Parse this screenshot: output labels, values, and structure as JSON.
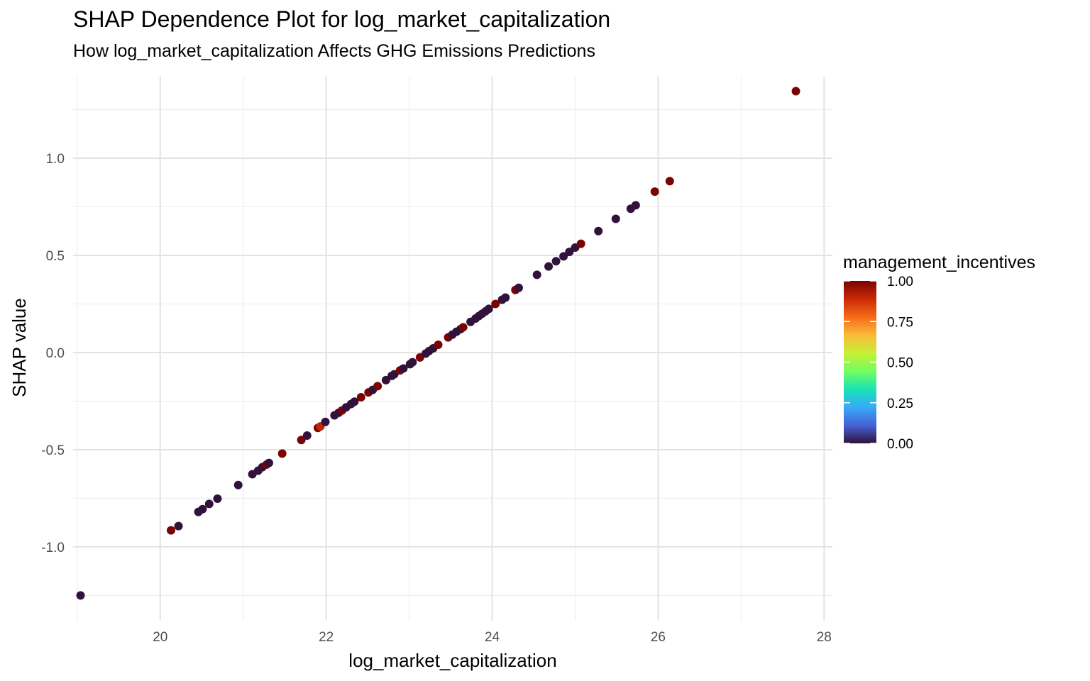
{
  "chart_data": {
    "type": "scatter",
    "title": "SHAP Dependence Plot for log_market_capitalization",
    "subtitle": "How log_market_capitalization Affects GHG Emissions Predictions",
    "xlabel": "log_market_capitalization",
    "ylabel": "SHAP value",
    "xlim": [
      18.95,
      28.1
    ],
    "ylim": [
      -1.38,
      1.42
    ],
    "x_ticks": [
      20,
      22,
      24,
      26,
      28
    ],
    "y_ticks": [
      -1.0,
      -0.5,
      0.0,
      0.5,
      1.0
    ],
    "x_tick_labels": [
      "20",
      "22",
      "24",
      "26",
      "28"
    ],
    "y_tick_labels": [
      "-1.0",
      "-0.5",
      "0.0",
      "0.5",
      "1.0"
    ],
    "grid": true,
    "color_legend": {
      "title": "management_incentives",
      "placement": "right",
      "range": [
        0,
        1
      ],
      "ticks": [
        0.0,
        0.25,
        0.5,
        0.75,
        1.0
      ],
      "tick_labels": [
        "0.00",
        "0.25",
        "0.50",
        "0.75",
        "1.00"
      ],
      "palette": [
        "#30123b",
        "#4662d7",
        "#36aaf9",
        "#1ae4b6",
        "#72fe5e",
        "#c7ef34",
        "#fabb3a",
        "#f66b19",
        "#ca2a04",
        "#7a0403"
      ]
    },
    "points": [
      {
        "x": 19.04,
        "y": -1.25,
        "c": 0
      },
      {
        "x": 20.13,
        "y": -0.915,
        "c": 1
      },
      {
        "x": 20.22,
        "y": -0.893,
        "c": 0
      },
      {
        "x": 20.46,
        "y": -0.82,
        "c": 0
      },
      {
        "x": 20.51,
        "y": -0.806,
        "c": 0
      },
      {
        "x": 20.59,
        "y": -0.779,
        "c": 0
      },
      {
        "x": 20.69,
        "y": -0.752,
        "c": 0
      },
      {
        "x": 20.94,
        "y": -0.682,
        "c": 0
      },
      {
        "x": 21.11,
        "y": -0.626,
        "c": 0
      },
      {
        "x": 21.18,
        "y": -0.608,
        "c": 0
      },
      {
        "x": 21.23,
        "y": -0.59,
        "c": 0
      },
      {
        "x": 21.28,
        "y": -0.577,
        "c": 1
      },
      {
        "x": 21.31,
        "y": -0.568,
        "c": 0
      },
      {
        "x": 21.47,
        "y": -0.52,
        "c": 1
      },
      {
        "x": 21.7,
        "y": -0.45,
        "c": 1
      },
      {
        "x": 21.77,
        "y": -0.427,
        "c": 0
      },
      {
        "x": 21.9,
        "y": -0.388,
        "c": 1
      },
      {
        "x": 21.93,
        "y": -0.38,
        "c": 0.9
      },
      {
        "x": 21.99,
        "y": -0.357,
        "c": 0
      },
      {
        "x": 22.1,
        "y": -0.323,
        "c": 0
      },
      {
        "x": 22.15,
        "y": -0.31,
        "c": 0
      },
      {
        "x": 22.19,
        "y": -0.298,
        "c": 1
      },
      {
        "x": 22.24,
        "y": -0.282,
        "c": 0
      },
      {
        "x": 22.3,
        "y": -0.265,
        "c": 0
      },
      {
        "x": 22.34,
        "y": -0.253,
        "c": 0
      },
      {
        "x": 22.42,
        "y": -0.23,
        "c": 1
      },
      {
        "x": 22.51,
        "y": -0.205,
        "c": 1
      },
      {
        "x": 22.56,
        "y": -0.192,
        "c": 0
      },
      {
        "x": 22.62,
        "y": -0.173,
        "c": 1
      },
      {
        "x": 22.72,
        "y": -0.142,
        "c": 0
      },
      {
        "x": 22.79,
        "y": -0.12,
        "c": 0
      },
      {
        "x": 22.82,
        "y": -0.112,
        "c": 0
      },
      {
        "x": 22.89,
        "y": -0.092,
        "c": 1
      },
      {
        "x": 22.93,
        "y": -0.082,
        "c": 0
      },
      {
        "x": 23.01,
        "y": -0.06,
        "c": 0
      },
      {
        "x": 23.04,
        "y": -0.05,
        "c": 0
      },
      {
        "x": 23.13,
        "y": -0.025,
        "c": 1
      },
      {
        "x": 23.2,
        "y": -0.005,
        "c": 0
      },
      {
        "x": 23.24,
        "y": 0.008,
        "c": 0
      },
      {
        "x": 23.29,
        "y": 0.022,
        "c": 0
      },
      {
        "x": 23.35,
        "y": 0.04,
        "c": 1
      },
      {
        "x": 23.47,
        "y": 0.078,
        "c": 1
      },
      {
        "x": 23.52,
        "y": 0.092,
        "c": 0
      },
      {
        "x": 23.57,
        "y": 0.107,
        "c": 0
      },
      {
        "x": 23.62,
        "y": 0.121,
        "c": 0
      },
      {
        "x": 23.65,
        "y": 0.13,
        "c": 1
      },
      {
        "x": 23.74,
        "y": 0.158,
        "c": 0
      },
      {
        "x": 23.8,
        "y": 0.175,
        "c": 0
      },
      {
        "x": 23.84,
        "y": 0.188,
        "c": 0
      },
      {
        "x": 23.88,
        "y": 0.2,
        "c": 0
      },
      {
        "x": 23.92,
        "y": 0.212,
        "c": 0
      },
      {
        "x": 23.96,
        "y": 0.225,
        "c": 0
      },
      {
        "x": 24.04,
        "y": 0.25,
        "c": 1
      },
      {
        "x": 24.12,
        "y": 0.272,
        "c": 0
      },
      {
        "x": 24.16,
        "y": 0.283,
        "c": 0
      },
      {
        "x": 24.28,
        "y": 0.322,
        "c": 1
      },
      {
        "x": 24.32,
        "y": 0.333,
        "c": 0
      },
      {
        "x": 24.54,
        "y": 0.4,
        "c": 0
      },
      {
        "x": 24.68,
        "y": 0.443,
        "c": 0
      },
      {
        "x": 24.77,
        "y": 0.47,
        "c": 0
      },
      {
        "x": 24.86,
        "y": 0.495,
        "c": 0
      },
      {
        "x": 24.93,
        "y": 0.518,
        "c": 0
      },
      {
        "x": 25.0,
        "y": 0.54,
        "c": 0
      },
      {
        "x": 25.07,
        "y": 0.56,
        "c": 1
      },
      {
        "x": 25.28,
        "y": 0.625,
        "c": 0
      },
      {
        "x": 25.49,
        "y": 0.688,
        "c": 0
      },
      {
        "x": 25.67,
        "y": 0.74,
        "c": 0
      },
      {
        "x": 25.73,
        "y": 0.758,
        "c": 0
      },
      {
        "x": 25.96,
        "y": 0.828,
        "c": 1
      },
      {
        "x": 26.14,
        "y": 0.882,
        "c": 1
      },
      {
        "x": 27.66,
        "y": 1.345,
        "c": 1
      }
    ]
  }
}
